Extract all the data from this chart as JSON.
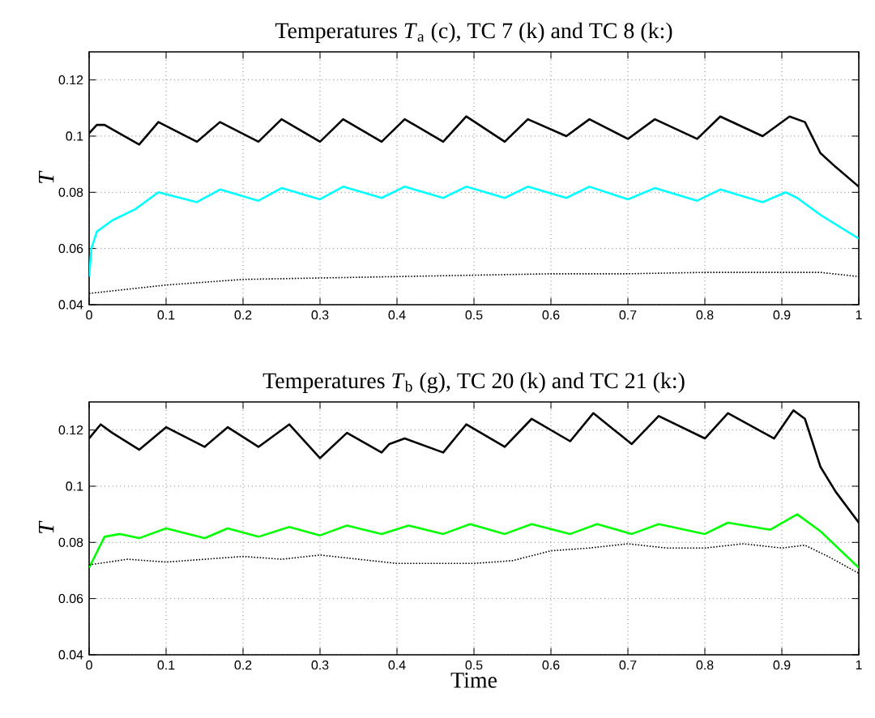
{
  "chart_data": [
    {
      "type": "line",
      "title": "Temperatures *T*$_{a}$ (c), TC 7 (k) and TC 8 (k:)",
      "ylabel": "T",
      "xlim": [
        0,
        1
      ],
      "ylim": [
        0.04,
        0.13
      ],
      "xticks": [
        0,
        0.1,
        0.2,
        0.3,
        0.4,
        0.5,
        0.6,
        0.7,
        0.8,
        0.9,
        1
      ],
      "yticks": [
        0.04,
        0.06,
        0.08,
        0.1,
        0.12
      ],
      "grid": true,
      "series": [
        {
          "color": "#000000",
          "line_style": "solid",
          "x": [
            0,
            0.01,
            0.02,
            0.065,
            0.09,
            0.14,
            0.17,
            0.22,
            0.25,
            0.3,
            0.33,
            0.38,
            0.41,
            0.46,
            0.49,
            0.54,
            0.57,
            0.62,
            0.65,
            0.7,
            0.735,
            0.79,
            0.82,
            0.875,
            0.91,
            0.93,
            0.95,
            0.97,
            1.0
          ],
          "values": [
            0.101,
            0.104,
            0.104,
            0.097,
            0.105,
            0.098,
            0.105,
            0.098,
            0.106,
            0.098,
            0.106,
            0.098,
            0.106,
            0.098,
            0.107,
            0.098,
            0.106,
            0.1,
            0.106,
            0.099,
            0.106,
            0.099,
            0.107,
            0.1,
            0.107,
            0.105,
            0.094,
            0.089,
            0.082
          ]
        },
        {
          "color": "#00ffff",
          "line_style": "solid",
          "x": [
            0,
            0.003,
            0.01,
            0.03,
            0.06,
            0.09,
            0.14,
            0.17,
            0.22,
            0.25,
            0.3,
            0.33,
            0.38,
            0.41,
            0.46,
            0.49,
            0.54,
            0.57,
            0.62,
            0.65,
            0.7,
            0.735,
            0.79,
            0.82,
            0.875,
            0.905,
            0.92,
            0.95,
            1.0
          ],
          "values": [
            0.05,
            0.06,
            0.066,
            0.07,
            0.074,
            0.08,
            0.0765,
            0.081,
            0.077,
            0.0815,
            0.0775,
            0.082,
            0.078,
            0.082,
            0.078,
            0.082,
            0.078,
            0.082,
            0.078,
            0.082,
            0.0775,
            0.0815,
            0.077,
            0.081,
            0.0765,
            0.08,
            0.078,
            0.072,
            0.0635
          ]
        },
        {
          "color": "#000000",
          "line_style": "dotted",
          "x": [
            0,
            0.1,
            0.2,
            0.3,
            0.4,
            0.5,
            0.6,
            0.7,
            0.8,
            0.9,
            0.95,
            1.0
          ],
          "values": [
            0.044,
            0.047,
            0.049,
            0.0495,
            0.05,
            0.0505,
            0.051,
            0.051,
            0.0515,
            0.0515,
            0.0515,
            0.05
          ]
        }
      ]
    },
    {
      "type": "line",
      "title": "Temperatures *T*$_{b}$ (g), TC 20 (k) and TC 21 (k:)",
      "xlabel": "Time",
      "ylabel": "T",
      "xlim": [
        0,
        1
      ],
      "ylim": [
        0.04,
        0.13
      ],
      "xticks": [
        0,
        0.1,
        0.2,
        0.3,
        0.4,
        0.5,
        0.6,
        0.7,
        0.8,
        0.9,
        1
      ],
      "yticks": [
        0.04,
        0.06,
        0.08,
        0.1,
        0.12
      ],
      "grid": true,
      "series": [
        {
          "color": "#000000",
          "line_style": "solid",
          "x": [
            0,
            0.015,
            0.03,
            0.065,
            0.1,
            0.15,
            0.18,
            0.22,
            0.26,
            0.3,
            0.335,
            0.38,
            0.39,
            0.41,
            0.46,
            0.49,
            0.54,
            0.575,
            0.625,
            0.655,
            0.705,
            0.74,
            0.8,
            0.83,
            0.89,
            0.915,
            0.93,
            0.95,
            0.97,
            1.0
          ],
          "values": [
            0.117,
            0.122,
            0.119,
            0.113,
            0.121,
            0.114,
            0.121,
            0.114,
            0.122,
            0.11,
            0.119,
            0.112,
            0.115,
            0.117,
            0.112,
            0.122,
            0.114,
            0.124,
            0.116,
            0.126,
            0.115,
            0.125,
            0.117,
            0.126,
            0.117,
            0.127,
            0.124,
            0.107,
            0.098,
            0.087
          ]
        },
        {
          "color": "#00ff00",
          "line_style": "solid",
          "x": [
            0,
            0.02,
            0.04,
            0.065,
            0.1,
            0.15,
            0.18,
            0.22,
            0.26,
            0.3,
            0.335,
            0.38,
            0.415,
            0.46,
            0.495,
            0.54,
            0.575,
            0.625,
            0.66,
            0.705,
            0.74,
            0.8,
            0.83,
            0.885,
            0.92,
            0.95,
            1.0
          ],
          "values": [
            0.071,
            0.082,
            0.083,
            0.0815,
            0.085,
            0.0815,
            0.085,
            0.082,
            0.0855,
            0.0825,
            0.086,
            0.083,
            0.086,
            0.083,
            0.0865,
            0.083,
            0.0865,
            0.083,
            0.0865,
            0.083,
            0.0865,
            0.083,
            0.087,
            0.0845,
            0.09,
            0.084,
            0.071
          ]
        },
        {
          "color": "#000000",
          "line_style": "dotted",
          "x": [
            0,
            0.05,
            0.1,
            0.15,
            0.2,
            0.25,
            0.3,
            0.35,
            0.4,
            0.45,
            0.5,
            0.55,
            0.6,
            0.65,
            0.7,
            0.75,
            0.8,
            0.85,
            0.9,
            0.93,
            0.96,
            1.0
          ],
          "values": [
            0.072,
            0.074,
            0.073,
            0.074,
            0.075,
            0.074,
            0.0755,
            0.074,
            0.0725,
            0.0725,
            0.0725,
            0.0735,
            0.077,
            0.078,
            0.0795,
            0.078,
            0.078,
            0.0795,
            0.078,
            0.079,
            0.075,
            0.069
          ]
        }
      ]
    }
  ]
}
